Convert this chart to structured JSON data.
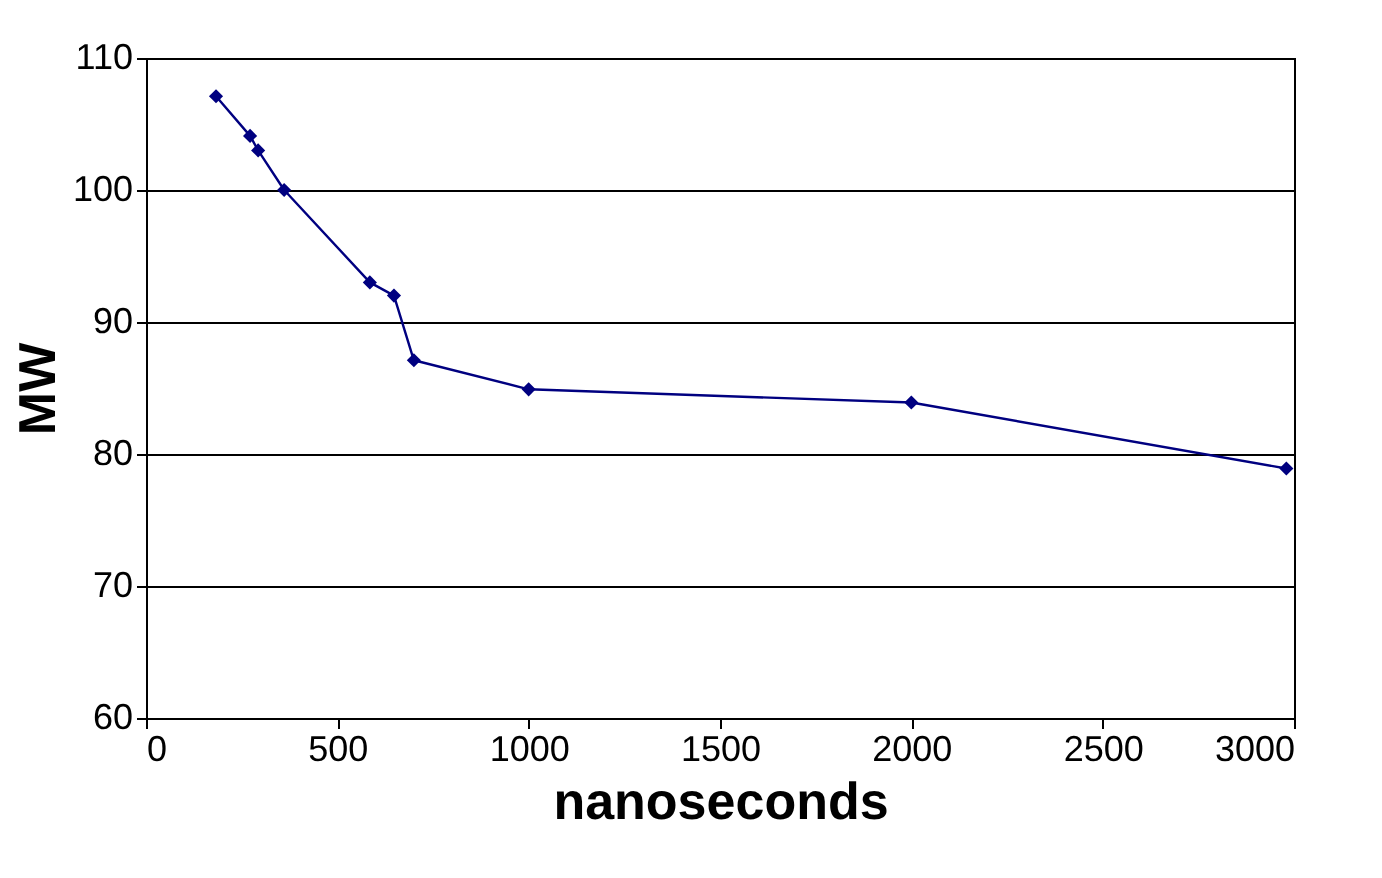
{
  "chart_data": {
    "type": "line",
    "xlabel": "nanoseconds",
    "ylabel": "MW",
    "x": [
      183,
      272,
      293,
      361,
      585,
      648,
      700,
      1000,
      2000,
      2980
    ],
    "series": [
      {
        "color": "#000080",
        "values": [
          107.1,
          104.1,
          103,
          100,
          93,
          92,
          87.1,
          84.9,
          83.9,
          78.9
        ]
      }
    ],
    "xlim": [
      0,
      3000
    ],
    "xticks": [
      0,
      500,
      1000,
      1500,
      2000,
      2500,
      3000
    ],
    "ylim": [
      60,
      110
    ],
    "yticks": [
      60,
      70,
      80,
      90,
      100,
      110
    ],
    "grid": "y",
    "marker": "diamond",
    "line_style": "solid"
  }
}
